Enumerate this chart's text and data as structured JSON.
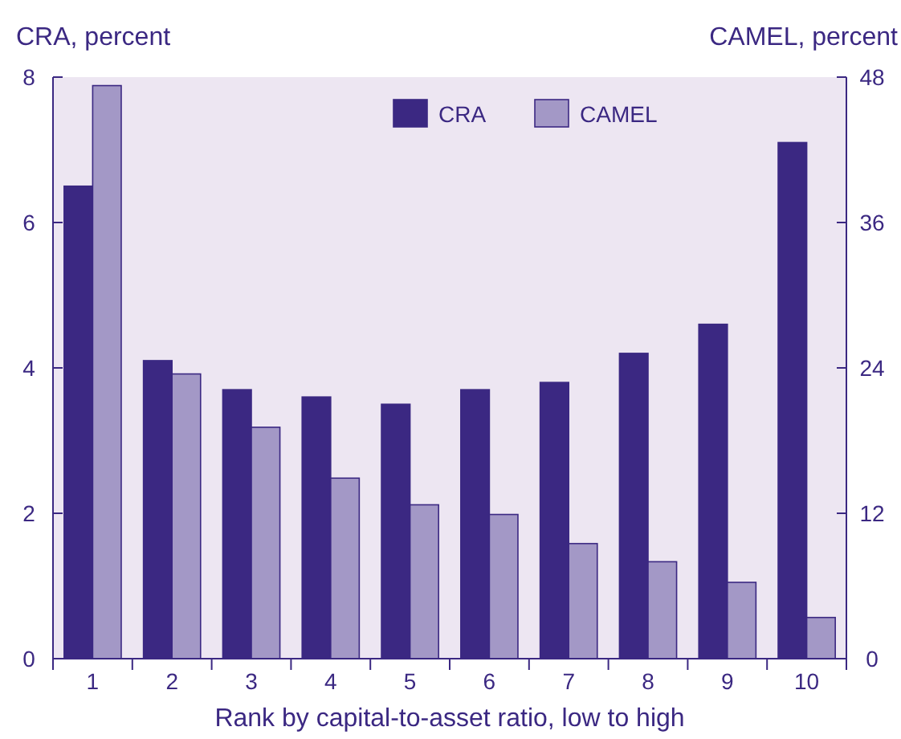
{
  "chart_data": {
    "type": "bar",
    "ylabel": "CRA, percent",
    "y2label": "CAMEL, percent",
    "xlabel": "Rank by capital-to-asset ratio, low to high",
    "categories": [
      "1",
      "2",
      "3",
      "4",
      "5",
      "6",
      "7",
      "8",
      "9",
      "10"
    ],
    "series": [
      {
        "name": "CRA",
        "color": "#3b2882",
        "values": [
          6.5,
          4.1,
          3.7,
          3.6,
          3.5,
          3.7,
          3.8,
          4.2,
          4.6,
          7.1
        ]
      },
      {
        "name": "CAMEL",
        "color": "#a398c6",
        "axis": "y2",
        "values": [
          47.3,
          23.5,
          19.1,
          14.9,
          12.7,
          11.9,
          9.5,
          8.0,
          6.3,
          3.4
        ]
      }
    ],
    "ylim": [
      0,
      8
    ],
    "yticks": [
      0,
      2,
      4,
      6,
      8
    ],
    "y2lim": [
      0,
      48
    ],
    "y2ticks": [
      0,
      12,
      24,
      36,
      48
    ],
    "legend": "top",
    "grid": false
  }
}
